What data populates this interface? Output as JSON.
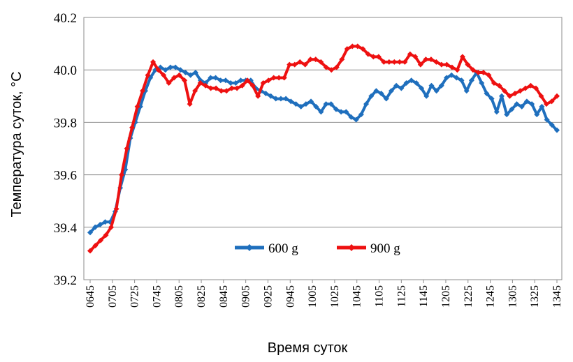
{
  "chart_data": {
    "type": "line",
    "title": "",
    "xlabel": "Время суток",
    "ylabel": "Температура суток, °С",
    "ylim": [
      39.2,
      40.2
    ],
    "yticks": [
      "39.2",
      "39.4",
      "39.6",
      "39.8",
      "40.0",
      "40.2"
    ],
    "xtick_labels": [
      "0645",
      "0705",
      "0725",
      "0745",
      "0805",
      "0825",
      "0845",
      "0905",
      "0925",
      "0945",
      "1005",
      "1025",
      "1045",
      "1105",
      "1125",
      "1145",
      "1205",
      "1225",
      "1245",
      "1305",
      "1325",
      "1345"
    ],
    "grid": true,
    "legend_position": "bottom-center",
    "colors": {
      "600 g": "#1f6fbd",
      "900 g": "#ee1111"
    },
    "series": [
      {
        "name": "600 g",
        "color": "#1f6fbd",
        "x_start": "0645",
        "x_end": "1345",
        "values": [
          39.38,
          39.4,
          39.41,
          39.42,
          39.42,
          39.46,
          39.55,
          39.62,
          39.74,
          39.8,
          39.86,
          39.92,
          39.97,
          40.0,
          40.01,
          40.0,
          40.01,
          40.01,
          40.0,
          39.99,
          39.98,
          39.99,
          39.96,
          39.95,
          39.97,
          39.97,
          39.96,
          39.96,
          39.95,
          39.95,
          39.96,
          39.96,
          39.96,
          39.93,
          39.92,
          39.91,
          39.9,
          39.89,
          39.89,
          39.89,
          39.88,
          39.87,
          39.86,
          39.87,
          39.88,
          39.86,
          39.84,
          39.87,
          39.87,
          39.85,
          39.84,
          39.84,
          39.82,
          39.81,
          39.83,
          39.87,
          39.9,
          39.92,
          39.91,
          39.89,
          39.92,
          39.94,
          39.93,
          39.95,
          39.96,
          39.95,
          39.93,
          39.9,
          39.94,
          39.92,
          39.94,
          39.97,
          39.98,
          39.97,
          39.96,
          39.92,
          39.96,
          39.99,
          39.95,
          39.91,
          39.89,
          39.84,
          39.9,
          39.83,
          39.85,
          39.87,
          39.86,
          39.88,
          39.87,
          39.83,
          39.86,
          39.81,
          39.79,
          39.77
        ]
      },
      {
        "name": "900 g",
        "color": "#ee1111",
        "x_start": "0645",
        "x_end": "1345",
        "values": [
          39.31,
          39.33,
          39.35,
          39.37,
          39.4,
          39.47,
          39.6,
          39.7,
          39.78,
          39.86,
          39.92,
          39.98,
          40.03,
          40.0,
          39.98,
          39.95,
          39.97,
          39.98,
          39.96,
          39.87,
          39.92,
          39.95,
          39.94,
          39.93,
          39.93,
          39.92,
          39.92,
          39.93,
          39.93,
          39.94,
          39.96,
          39.94,
          39.9,
          39.95,
          39.96,
          39.97,
          39.97,
          39.97,
          40.02,
          40.02,
          40.03,
          40.02,
          40.04,
          40.04,
          40.03,
          40.01,
          40.0,
          40.01,
          40.04,
          40.08,
          40.09,
          40.09,
          40.08,
          40.06,
          40.05,
          40.05,
          40.03,
          40.03,
          40.03,
          40.03,
          40.03,
          40.06,
          40.05,
          40.02,
          40.04,
          40.04,
          40.03,
          40.02,
          40.02,
          40.01,
          40.0,
          40.05,
          40.02,
          40.0,
          39.99,
          39.99,
          39.98,
          39.95,
          39.94,
          39.92,
          39.9,
          39.91,
          39.92,
          39.93,
          39.94,
          39.93,
          39.9,
          39.87,
          39.88,
          39.9
        ]
      }
    ]
  }
}
